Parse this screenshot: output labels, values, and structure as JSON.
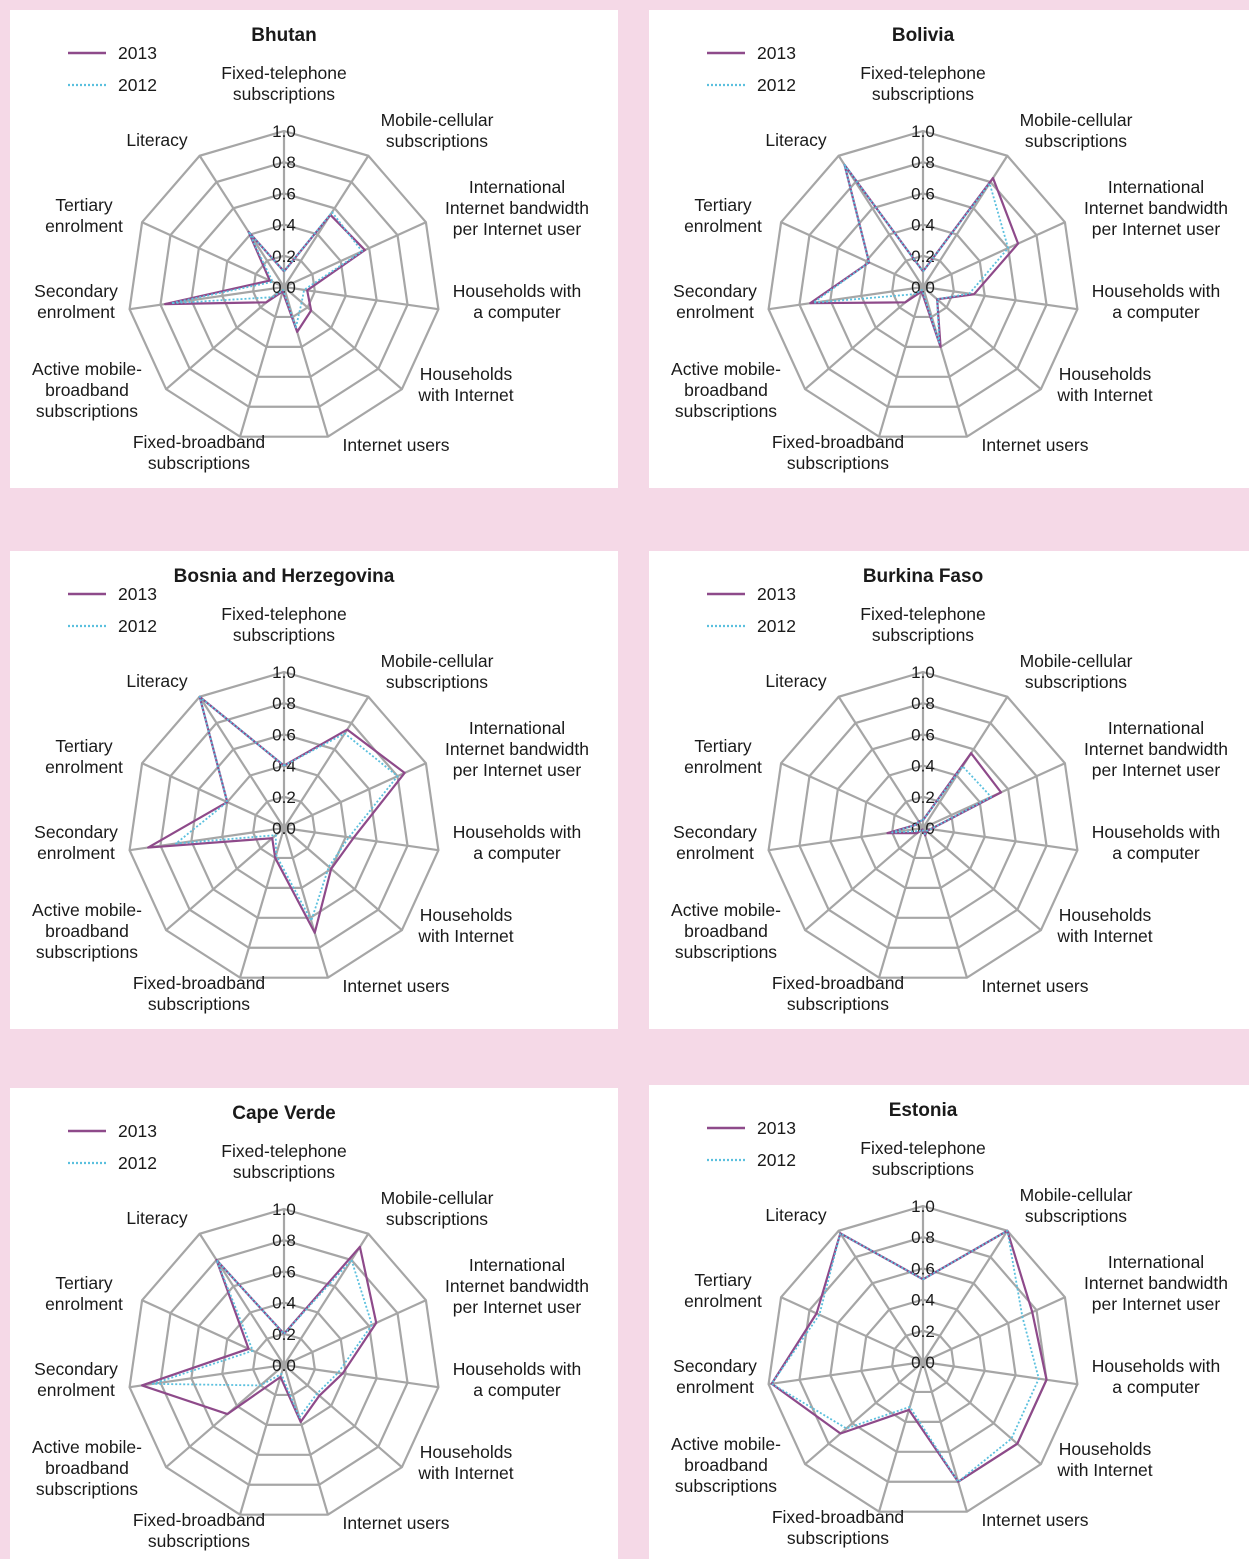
{
  "colors": {
    "background": "#f5d9e7",
    "grid": "#a6a6a6",
    "series_2013": "#8e4a8a",
    "series_2012": "#5bc0de"
  },
  "legend": [
    "2013",
    "2012"
  ],
  "axes": [
    "Fixed-telephone subscriptions",
    "Mobile-cellular subscriptions",
    "International Internet bandwidth per Internet user",
    "Households with a computer",
    "Households with Internet",
    "Internet users",
    "Fixed-broadband subscriptions",
    "Active mobile-broadband subscriptions",
    "Secondary enrolment",
    "Tertiary enrolment",
    "Literacy"
  ],
  "ticks": [
    "0.0",
    "0.2",
    "0.4",
    "0.6",
    "0.8",
    "1.0"
  ],
  "chart_data": [
    {
      "type": "radar",
      "title": "Bhutan",
      "ylim": [
        0,
        1
      ],
      "grid": true,
      "legend_position": "top-left",
      "series": [
        {
          "name": "2013",
          "values": [
            0.1,
            0.55,
            0.57,
            0.15,
            0.23,
            0.3,
            0.03,
            0.15,
            0.77,
            0.1,
            0.42
          ]
        },
        {
          "name": "2012",
          "values": [
            0.1,
            0.57,
            0.55,
            0.13,
            0.15,
            0.27,
            0.02,
            0.1,
            0.73,
            0.08,
            0.42
          ]
        }
      ]
    },
    {
      "type": "radar",
      "title": "Bolivia",
      "ylim": [
        0,
        1
      ],
      "grid": true,
      "legend_position": "top-left",
      "series": [
        {
          "name": "2013",
          "values": [
            0.1,
            0.83,
            0.67,
            0.33,
            0.12,
            0.4,
            0.03,
            0.15,
            0.73,
            0.38,
            0.93
          ]
        },
        {
          "name": "2012",
          "values": [
            0.1,
            0.79,
            0.6,
            0.3,
            0.12,
            0.37,
            0.02,
            0.07,
            0.71,
            0.38,
            0.93
          ]
        }
      ]
    },
    {
      "type": "radar",
      "title": "Bosnia and Herzegovina",
      "ylim": [
        0,
        1
      ],
      "grid": true,
      "legend_position": "top-left",
      "series": [
        {
          "name": "2013",
          "values": [
            0.4,
            0.75,
            0.85,
            0.45,
            0.4,
            0.7,
            0.2,
            0.1,
            0.88,
            0.4,
            1.0
          ]
        },
        {
          "name": "2012",
          "values": [
            0.4,
            0.72,
            0.8,
            0.42,
            0.38,
            0.62,
            0.18,
            0.07,
            0.7,
            0.4,
            1.0
          ]
        }
      ]
    },
    {
      "type": "radar",
      "title": "Burkina Faso",
      "ylim": [
        0,
        1
      ],
      "grid": true,
      "legend_position": "top-left",
      "series": [
        {
          "name": "2013",
          "values": [
            0.05,
            0.57,
            0.55,
            0.05,
            0.03,
            0.05,
            0.01,
            0.05,
            0.23,
            0.05,
            0.05
          ]
        },
        {
          "name": "2012",
          "values": [
            0.05,
            0.47,
            0.48,
            0.05,
            0.03,
            0.04,
            0.01,
            0.03,
            0.2,
            0.05,
            0.05
          ]
        }
      ]
    },
    {
      "type": "radar",
      "title": "Cape Verde",
      "ylim": [
        0,
        1
      ],
      "grid": true,
      "legend_position": "top-left",
      "series": [
        {
          "name": "2013",
          "values": [
            0.2,
            0.9,
            0.65,
            0.38,
            0.3,
            0.38,
            0.08,
            0.48,
            0.92,
            0.25,
            0.8
          ]
        },
        {
          "name": "2012",
          "values": [
            0.2,
            0.8,
            0.62,
            0.35,
            0.28,
            0.35,
            0.06,
            0.2,
            0.85,
            0.22,
            0.8
          ]
        }
      ]
    },
    {
      "type": "radar",
      "title": "Estonia",
      "ylim": [
        0,
        1
      ],
      "grid": true,
      "legend_position": "top-left",
      "series": [
        {
          "name": "2013",
          "values": [
            0.53,
            1.0,
            0.77,
            0.8,
            0.8,
            0.8,
            0.32,
            0.7,
            0.98,
            0.75,
            0.98
          ]
        },
        {
          "name": "2012",
          "values": [
            0.53,
            1.0,
            0.7,
            0.75,
            0.75,
            0.8,
            0.3,
            0.65,
            0.98,
            0.73,
            0.98
          ]
        }
      ]
    }
  ]
}
